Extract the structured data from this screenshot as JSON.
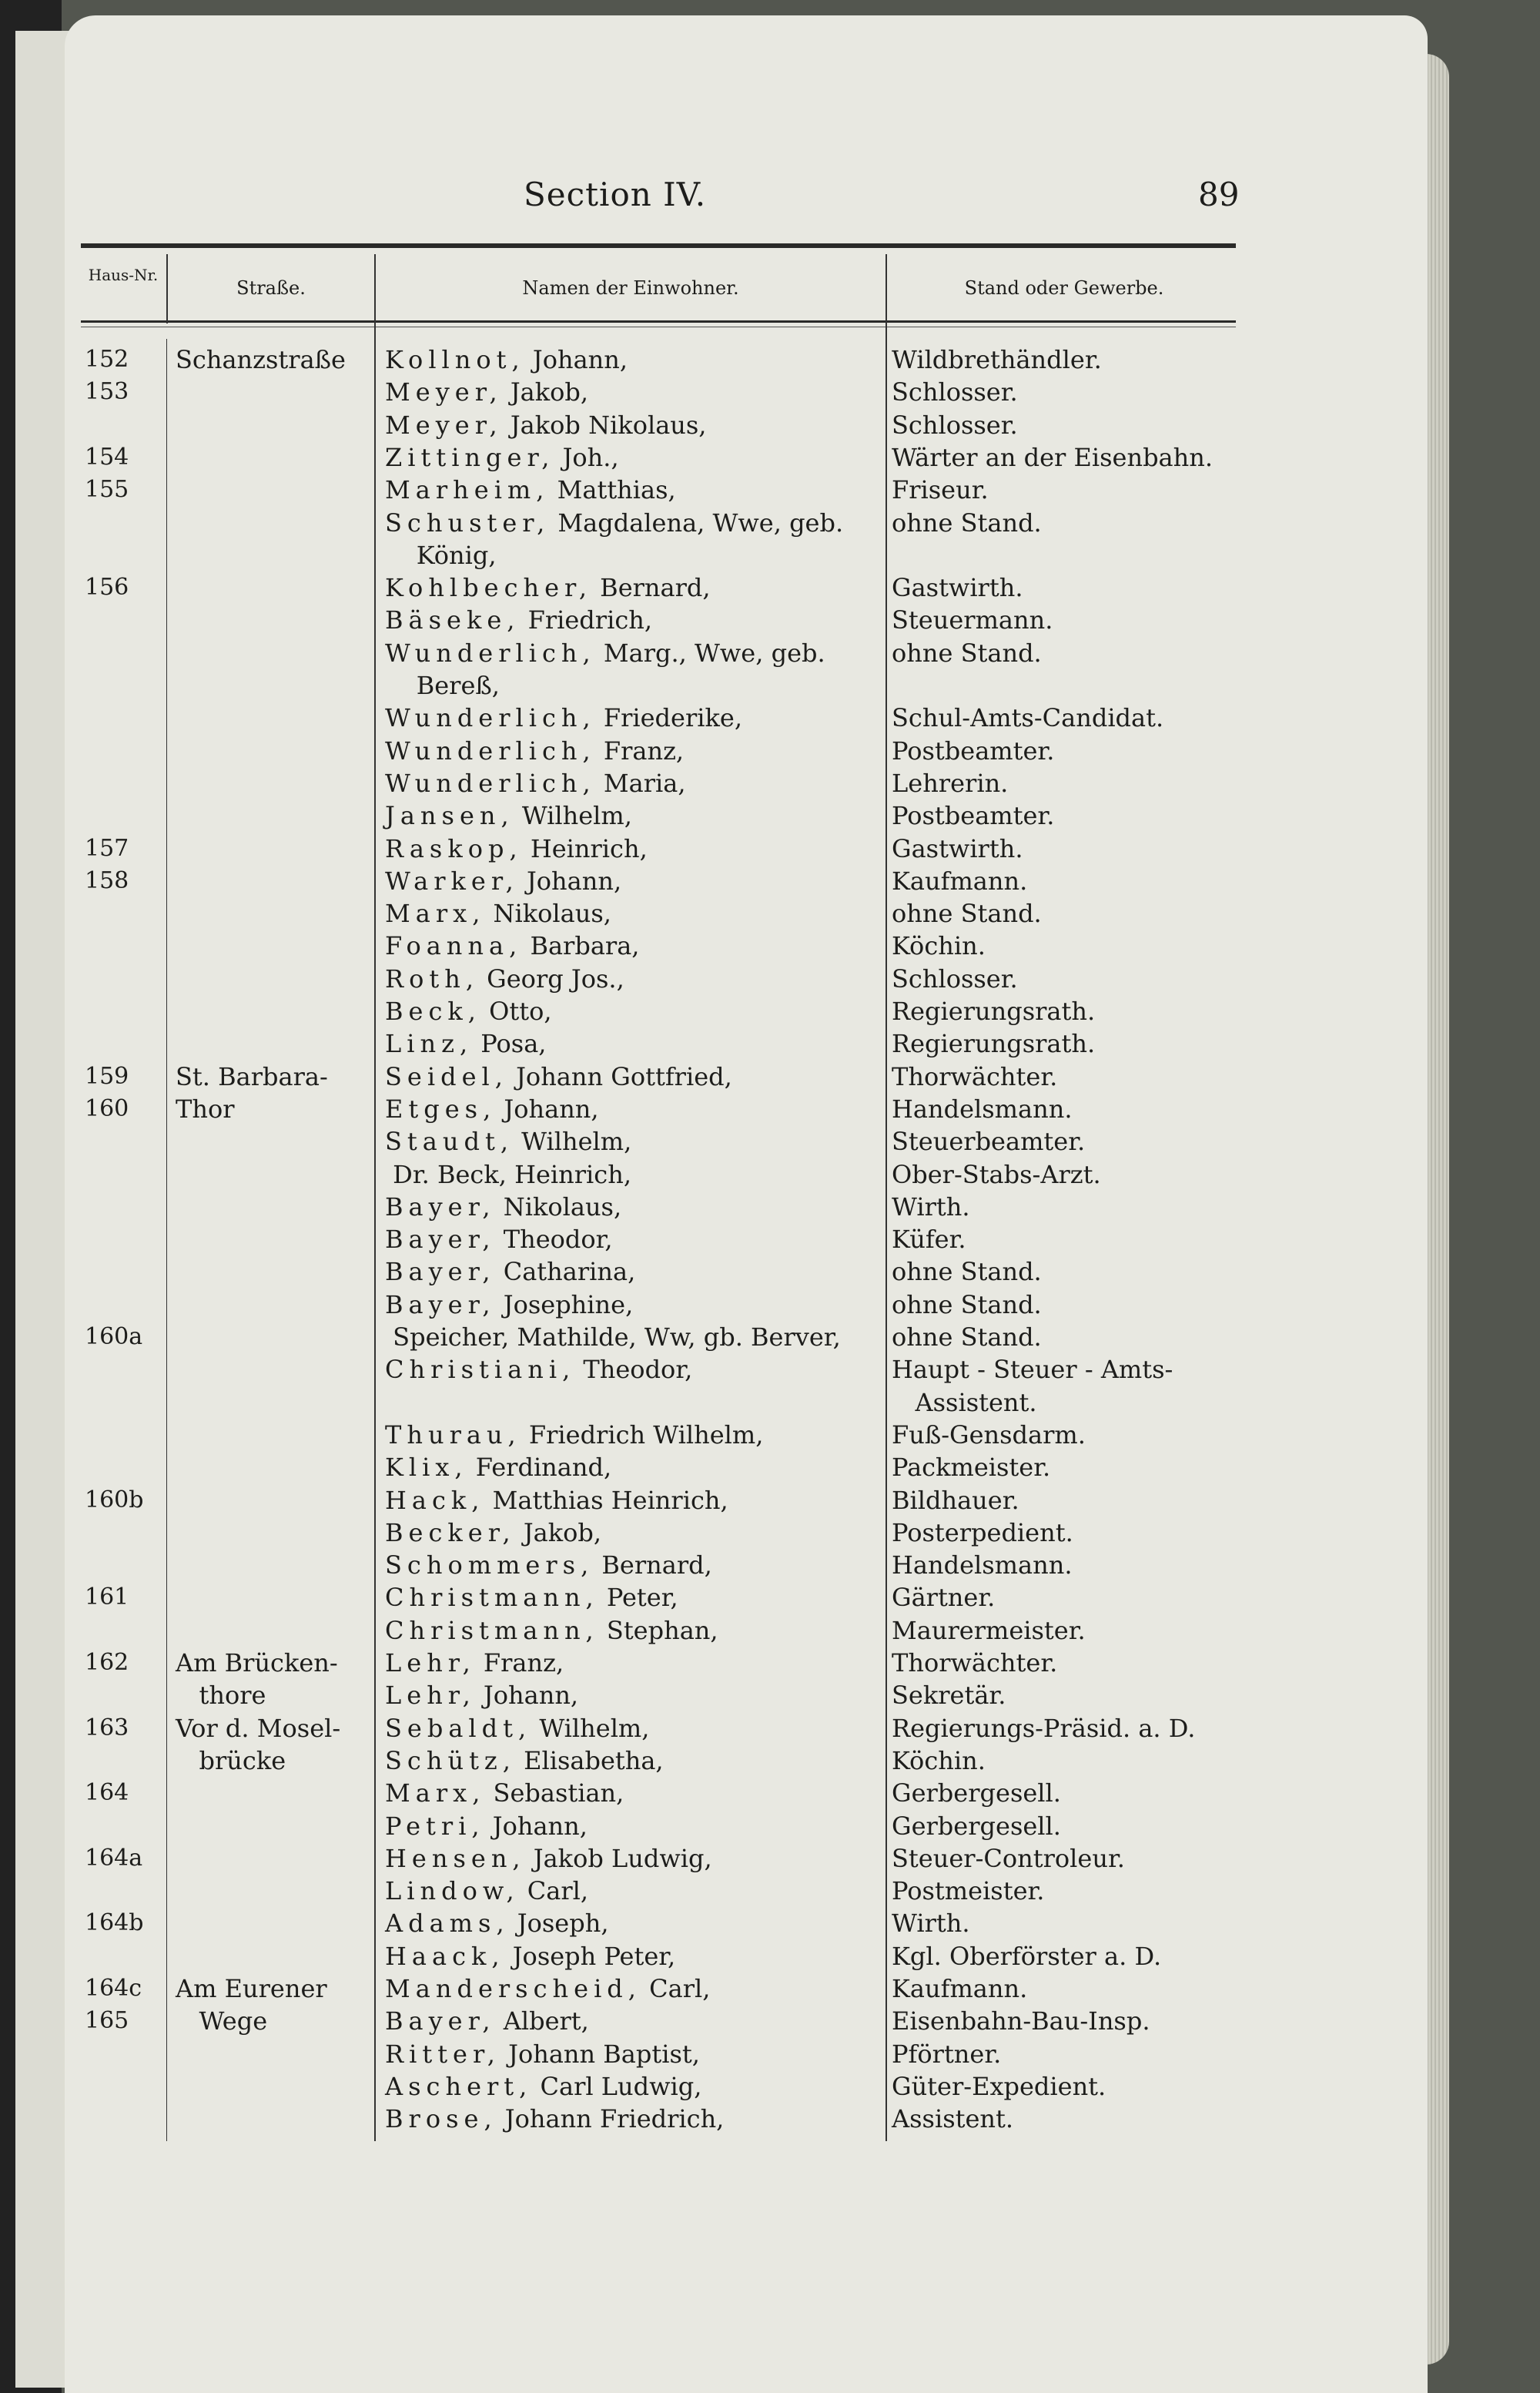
{
  "header": {
    "title": "Section IV.",
    "page_number": "89"
  },
  "columns": {
    "nr": "Haus-Nr.",
    "street": "Straße.",
    "names": "Namen der Einwohner.",
    "stand": "Stand oder Gewerbe."
  },
  "rows": [
    {
      "nr": "152",
      "street": "Schanzstraße",
      "surname": "Kollnot,",
      "given": "Johann,",
      "stand": "Wildbrethändler."
    },
    {
      "nr": "153",
      "street": "",
      "surname": "Meyer,",
      "given": "Jakob,",
      "stand": "Schlosser."
    },
    {
      "nr": "",
      "street": "",
      "surname": "Meyer,",
      "given": "Jakob Nikolaus,",
      "stand": "Schlosser."
    },
    {
      "nr": "154",
      "street": "",
      "surname": "Zittinger,",
      "given": "Joh.,",
      "stand": "Wärter an der Eisenbahn."
    },
    {
      "nr": "155",
      "street": "",
      "surname": "Marheim,",
      "given": "Matthias,",
      "stand": "Friseur."
    },
    {
      "nr": "",
      "street": "",
      "surname": "Schuster,",
      "given": "Magdalena, Wwe, geb.",
      "stand": "ohne Stand."
    },
    {
      "nr": "",
      "street": "",
      "surname": "",
      "given": "   König,",
      "stand": ""
    },
    {
      "nr": "156",
      "street": "",
      "surname": "Kohlbecher,",
      "given": "Bernard,",
      "stand": "Gastwirth."
    },
    {
      "nr": "",
      "street": "",
      "surname": "Bäseke,",
      "given": "Friedrich,",
      "stand": "Steuermann."
    },
    {
      "nr": "",
      "street": "",
      "surname": "Wunderlich,",
      "given": "Marg., Wwe, geb.",
      "stand": "ohne Stand."
    },
    {
      "nr": "",
      "street": "",
      "surname": "",
      "given": "   Bereß,",
      "stand": ""
    },
    {
      "nr": "",
      "street": "",
      "surname": "Wunderlich,",
      "given": "Friederike,",
      "stand": "Schul-Amts-Candidat."
    },
    {
      "nr": "",
      "street": "",
      "surname": "Wunderlich,",
      "given": "Franz,",
      "stand": "Postbeamter."
    },
    {
      "nr": "",
      "street": "",
      "surname": "Wunderlich,",
      "given": "Maria,",
      "stand": "Lehrerin."
    },
    {
      "nr": "",
      "street": "",
      "surname": "Jansen,",
      "given": "Wilhelm,",
      "stand": "Postbeamter."
    },
    {
      "nr": "157",
      "street": "",
      "surname": "Raskop,",
      "given": "Heinrich,",
      "stand": "Gastwirth."
    },
    {
      "nr": "158",
      "street": "",
      "surname": "Warker,",
      "given": "Johann,",
      "stand": "Kaufmann."
    },
    {
      "nr": "",
      "street": "",
      "surname": "Marx,",
      "given": "Nikolaus,",
      "stand": "ohne Stand."
    },
    {
      "nr": "",
      "street": "",
      "surname": "Foanna,",
      "given": "Barbara,",
      "stand": "Köchin."
    },
    {
      "nr": "",
      "street": "",
      "surname": "Roth,",
      "given": "Georg Jos.,",
      "stand": "Schlosser."
    },
    {
      "nr": "",
      "street": "",
      "surname": "Beck,",
      "given": "Otto,",
      "stand": "Regierungsrath."
    },
    {
      "nr": "",
      "street": "",
      "surname": "Linz,",
      "given": "Posa,",
      "stand": "Regierungsrath."
    },
    {
      "nr": "159",
      "street": "St. Barbara-",
      "surname": "Seidel,",
      "given": "Johann Gottfried,",
      "stand": "Thorwächter."
    },
    {
      "nr": "160",
      "street": "Thor",
      "surname": "Etges,",
      "given": "Johann,",
      "stand": "Handelsmann."
    },
    {
      "nr": "",
      "street": "",
      "surname": "Staudt,",
      "given": "Wilhelm,",
      "stand": "Steuerbeamter."
    },
    {
      "nr": "",
      "street": "",
      "surname": "",
      "given": "Dr. Beck, Heinrich,",
      "stand": "Ober-Stabs-Arzt."
    },
    {
      "nr": "",
      "street": "",
      "surname": "Bayer,",
      "given": "Nikolaus,",
      "stand": "Wirth."
    },
    {
      "nr": "",
      "street": "",
      "surname": "Bayer,",
      "given": "Theodor,",
      "stand": "Küfer."
    },
    {
      "nr": "",
      "street": "",
      "surname": "Bayer,",
      "given": "Catharina,",
      "stand": "ohne Stand."
    },
    {
      "nr": "",
      "street": "",
      "surname": "Bayer,",
      "given": "Josephine,",
      "stand": "ohne Stand."
    },
    {
      "nr": "160a",
      "street": "",
      "surname": "",
      "given": "Speicher, Mathilde, Ww, gb. Berver,",
      "stand": "ohne Stand."
    },
    {
      "nr": "",
      "street": "",
      "surname": "Christiani,",
      "given": "Theodor,",
      "stand": "Haupt - Steuer - Amts-"
    },
    {
      "nr": "",
      "street": "",
      "surname": "",
      "given": "",
      "stand": "   Assistent."
    },
    {
      "nr": "",
      "street": "",
      "surname": "Thurau,",
      "given": "Friedrich Wilhelm,",
      "stand": "Fuß-Gensdarm."
    },
    {
      "nr": "",
      "street": "",
      "surname": "Klix,",
      "given": "Ferdinand,",
      "stand": "Packmeister."
    },
    {
      "nr": "160b",
      "street": "",
      "surname": "Hack,",
      "given": "Matthias Heinrich,",
      "stand": "Bildhauer."
    },
    {
      "nr": "",
      "street": "",
      "surname": "Becker,",
      "given": "Jakob,",
      "stand": "Posterpedient."
    },
    {
      "nr": "",
      "street": "",
      "surname": "Schommers,",
      "given": "Bernard,",
      "stand": "Handelsmann."
    },
    {
      "nr": "161",
      "street": "",
      "surname": "Christmann,",
      "given": "Peter,",
      "stand": "Gärtner."
    },
    {
      "nr": "",
      "street": "",
      "surname": "Christmann,",
      "given": "Stephan,",
      "stand": "Maurermeister."
    },
    {
      "nr": "162",
      "street": "Am Brücken-",
      "surname": "Lehr,",
      "given": "Franz,",
      "stand": "Thorwächter."
    },
    {
      "nr": "",
      "street": "   thore",
      "surname": "Lehr,",
      "given": "Johann,",
      "stand": "Sekretär."
    },
    {
      "nr": "163",
      "street": "Vor d. Mosel-",
      "surname": "Sebaldt,",
      "given": "Wilhelm,",
      "stand": "Regierungs-Präsid. a. D."
    },
    {
      "nr": "",
      "street": "   brücke",
      "surname": "Schütz,",
      "given": "Elisabetha,",
      "stand": "Köchin."
    },
    {
      "nr": "164",
      "street": "",
      "surname": "Marx,",
      "given": "Sebastian,",
      "stand": "Gerbergesell."
    },
    {
      "nr": "",
      "street": "",
      "surname": "Petri,",
      "given": "Johann,",
      "stand": "Gerbergesell."
    },
    {
      "nr": "164a",
      "street": "",
      "surname": "Hensen,",
      "given": "Jakob Ludwig,",
      "stand": "Steuer-Controleur."
    },
    {
      "nr": "",
      "street": "",
      "surname": "Lindow,",
      "given": "Carl,",
      "stand": "Postmeister."
    },
    {
      "nr": "164b",
      "street": "",
      "surname": "Adams,",
      "given": "Joseph,",
      "stand": "Wirth."
    },
    {
      "nr": "",
      "street": "",
      "surname": "Haack,",
      "given": "Joseph Peter,",
      "stand": "Kgl. Oberförster a. D."
    },
    {
      "nr": "164c",
      "street": "Am Eurener",
      "surname": "Manderscheid,",
      "given": "Carl,",
      "stand": "Kaufmann."
    },
    {
      "nr": "165",
      "street": "   Wege",
      "surname": "Bayer,",
      "given": "Albert,",
      "stand": "Eisenbahn-Bau-Insp."
    },
    {
      "nr": "",
      "street": "",
      "surname": "Ritter,",
      "given": "Johann Baptist,",
      "stand": "Pförtner."
    },
    {
      "nr": "",
      "street": "",
      "surname": "Aschert,",
      "given": "Carl Ludwig,",
      "stand": "Güter-Expedient."
    },
    {
      "nr": "",
      "street": "",
      "surname": "Brose,",
      "given": "Johann Friedrich,",
      "stand": "Assistent."
    }
  ]
}
